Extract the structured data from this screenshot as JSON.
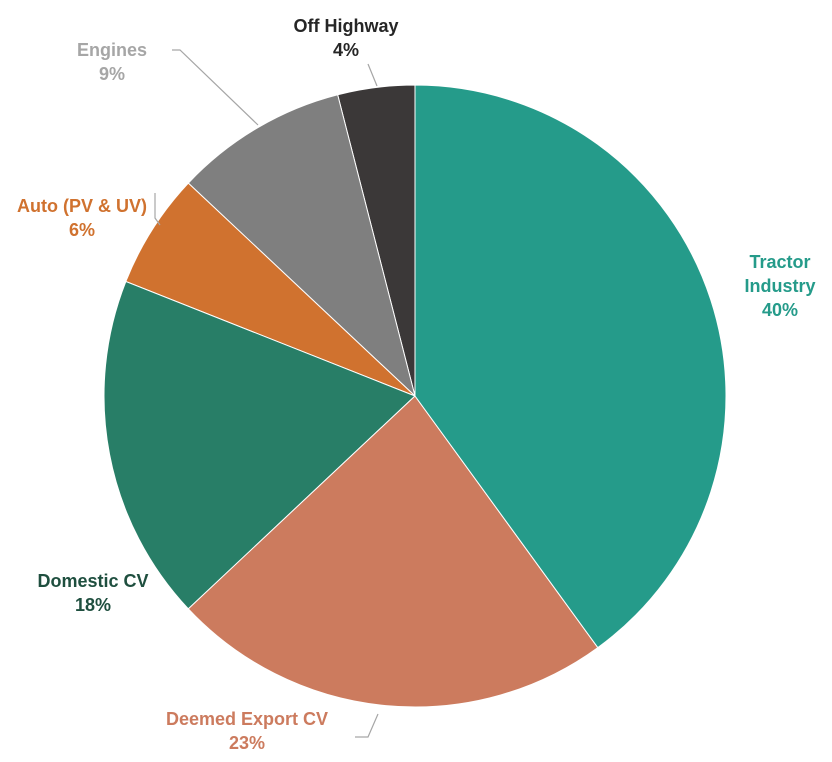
{
  "chart_data": {
    "type": "pie",
    "categories": [
      "Tractor Industry",
      "Deemed Export CV",
      "Domestic CV",
      "Auto (PV & UV)",
      "Engines",
      "Off Highway"
    ],
    "values": [
      40,
      23,
      18,
      6,
      9,
      4
    ],
    "value_labels": [
      "40%",
      "23%",
      "18%",
      "6%",
      "9%",
      "4%"
    ],
    "colors": [
      "#259b8a",
      "#cc7b5e",
      "#287e67",
      "#d0722f",
      "#7f7f7f",
      "#3b3838"
    ],
    "label_colors": [
      "#259b8a",
      "#cc7b5e",
      "#1f4f3f",
      "#d0722f",
      "#a6a6a6",
      "#262626"
    ]
  }
}
